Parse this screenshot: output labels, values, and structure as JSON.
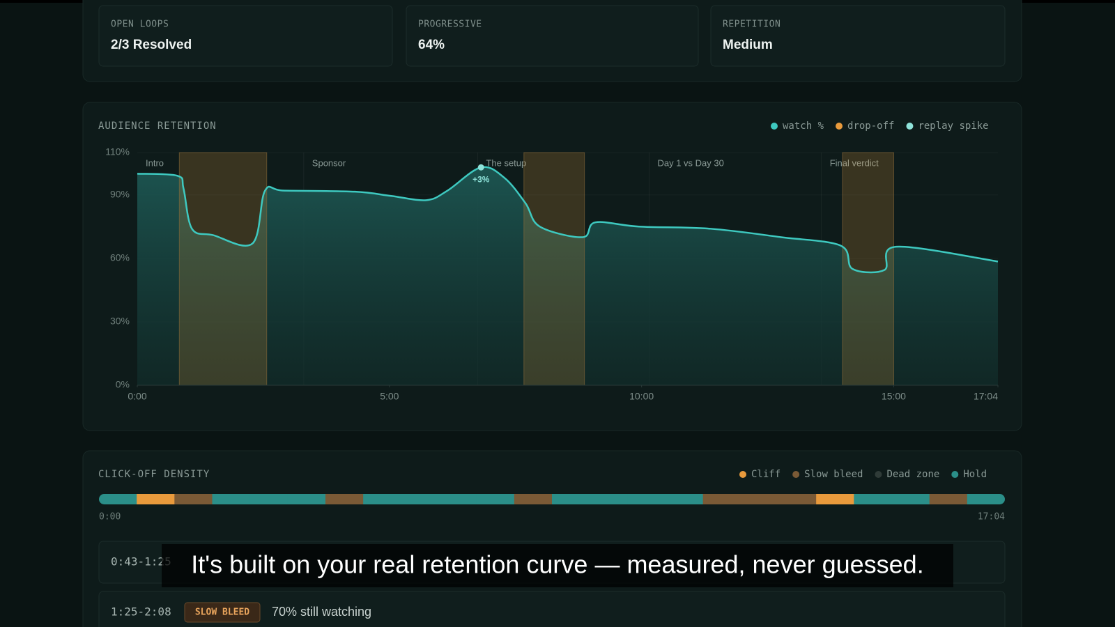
{
  "cards": [
    {
      "label": "OPEN LOOPS",
      "value": "2/3 Resolved"
    },
    {
      "label": "PROGRESSIVE",
      "value": "64%"
    },
    {
      "label": "REPETITION",
      "value": "Medium"
    }
  ],
  "chart_data": [
    {
      "type": "line",
      "title": "AUDIENCE RETENTION",
      "legend": [
        {
          "name": "watch %",
          "color": "#3ec9c0"
        },
        {
          "name": "drop-off",
          "color": "#e89a3c"
        },
        {
          "name": "replay spike",
          "color": "#8fe3da"
        }
      ],
      "x": [
        0,
        48,
        55,
        65,
        90,
        137,
        152,
        175,
        259,
        302,
        344,
        369,
        409,
        437,
        462,
        479,
        530,
        545,
        597,
        682,
        766,
        837,
        851,
        889,
        903,
        1024
      ],
      "values": [
        100,
        99,
        93,
        74,
        71,
        67,
        92,
        92,
        91.5,
        89.5,
        87.5,
        92,
        103,
        98,
        86,
        75,
        70,
        77,
        75,
        74,
        70,
        66,
        55,
        54.5,
        65.5,
        58.5
      ],
      "xlim": [
        0,
        1024
      ],
      "xticks": [
        {
          "value": 0,
          "label": "0:00"
        },
        {
          "value": 300,
          "label": "5:00"
        },
        {
          "value": 600,
          "label": "10:00"
        },
        {
          "value": 900,
          "label": "15:00"
        },
        {
          "value": 1024,
          "label": "17:04"
        }
      ],
      "ylim": [
        0,
        110
      ],
      "yticks": [
        {
          "value": 0,
          "label": "0%"
        },
        {
          "value": 30,
          "label": "30%"
        },
        {
          "value": 60,
          "label": "60%"
        },
        {
          "value": 90,
          "label": "90%"
        },
        {
          "value": 110,
          "label": "110%"
        }
      ],
      "grid": true,
      "drop_off": [
        [
          50,
          154
        ],
        [
          460,
          532
        ],
        [
          839,
          900
        ]
      ],
      "sections": [
        {
          "label": "Intro",
          "start": 0
        },
        {
          "label": "Sponsor",
          "start": 198
        },
        {
          "label": "The setup",
          "start": 405
        },
        {
          "label": "Day 1 vs Day 30",
          "start": 609
        },
        {
          "label": "Final verdict",
          "start": 814
        }
      ],
      "replay_spike": {
        "x": 409,
        "y": 103,
        "label": "+3%"
      }
    },
    {
      "type": "strip",
      "title": "CLICK-OFF DENSITY",
      "legend": [
        {
          "name": "Cliff",
          "color": "#e89a3c"
        },
        {
          "name": "Slow bleed",
          "color": "#7a5a36"
        },
        {
          "name": "Dead zone",
          "color": "#2f3b38"
        },
        {
          "name": "Hold",
          "color": "#2b8f89"
        }
      ],
      "buckets": [
        "Hold",
        "Cliff",
        "Slow bleed",
        "Hold",
        "Hold",
        "Hold",
        "Slow bleed",
        "Hold",
        "Hold",
        "Hold",
        "Hold",
        "Slow bleed",
        "Hold",
        "Hold",
        "Hold",
        "Hold",
        "Slow bleed",
        "Slow bleed",
        "Slow bleed",
        "Cliff",
        "Hold",
        "Hold",
        "Slow bleed",
        "Hold"
      ],
      "start_label": "0:00",
      "end_label": "17:04"
    }
  ],
  "rows": [
    {
      "time": "0:43-1:25"
    },
    {
      "time": "1:25-2:08",
      "badge": "SLOW BLEED",
      "text": "70% still watching"
    }
  ],
  "subtitle": "It's built on your real retention curve — measured, never guessed."
}
